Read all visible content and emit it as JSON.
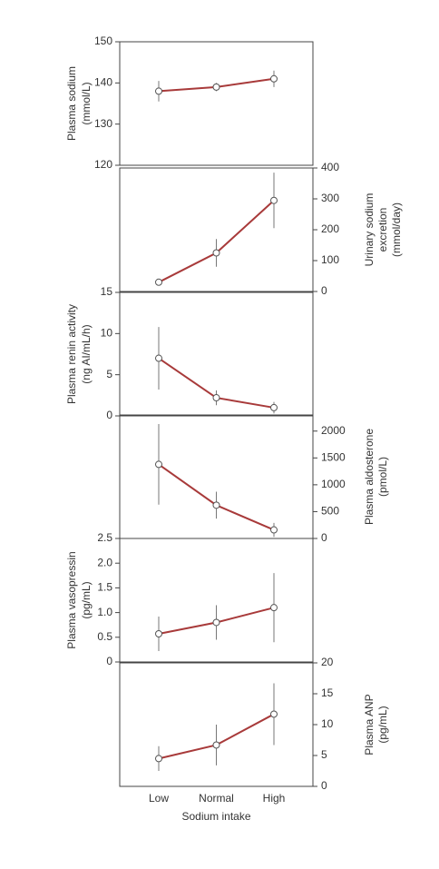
{
  "chart_data": [
    {
      "type": "line",
      "ylabel": [
        "Plasma sodium",
        "(mmol/L)"
      ],
      "yaxis": "left",
      "ylim": [
        120,
        150
      ],
      "yticks": [
        120,
        130,
        140,
        150
      ],
      "color": "#a83a3a",
      "values": [
        138,
        139,
        141
      ],
      "errors": [
        2.5,
        1,
        2
      ]
    },
    {
      "type": "line",
      "ylabel": [
        "Urinary  sodium",
        "excretion",
        "(mmol/day)"
      ],
      "yaxis": "right",
      "ylim": [
        0,
        400
      ],
      "yticks": [
        0,
        100,
        200,
        300,
        400
      ],
      "color": "#a83a3a",
      "values": [
        30,
        125,
        295
      ],
      "errors": [
        5,
        45,
        90
      ]
    },
    {
      "type": "line",
      "ylabel": [
        "Plasma renin activity",
        "(ng AI/mL/h)"
      ],
      "yaxis": "left",
      "ylim": [
        0,
        15
      ],
      "yticks": [
        0,
        5,
        10,
        15
      ],
      "color": "#a83a3a",
      "values": [
        7,
        2.2,
        1
      ],
      "errors": [
        3.8,
        0.9,
        0.7
      ]
    },
    {
      "type": "line",
      "ylabel": [
        "Plasma aldosterone",
        "(pmol/L)"
      ],
      "yaxis": "right",
      "ylim": [
        0,
        2300
      ],
      "yticks": [
        0,
        500,
        1000,
        1500,
        2000
      ],
      "color": "#a83a3a",
      "values": [
        1380,
        620,
        160
      ],
      "errors": [
        750,
        250,
        130
      ]
    },
    {
      "type": "line",
      "ylabel": [
        "Plasma vasopressin",
        "(pg/mL)"
      ],
      "yaxis": "left",
      "ylim": [
        0,
        2.5
      ],
      "yticks": [
        0,
        0.5,
        {
          "value": 1,
          "label": "1.0"
        },
        1.5,
        {
          "value": 2,
          "label": "2.0"
        },
        2.5
      ],
      "color": "#a83a3a",
      "values": [
        0.57,
        0.8,
        1.1
      ],
      "errors": [
        0.35,
        0.35,
        0.7
      ]
    },
    {
      "type": "line",
      "ylabel": [
        "Plasma ANP",
        "(pg/mL)"
      ],
      "yaxis": "right",
      "ylim": [
        0,
        20
      ],
      "yticks": [
        0,
        5,
        10,
        15,
        20
      ],
      "color": "#a83a3a",
      "values": [
        4.5,
        6.7,
        11.7
      ],
      "errors": [
        2,
        3.3,
        5
      ],
      "categories": [
        "Low",
        "Normal",
        "High"
      ],
      "xlabel": "Sodium intake"
    }
  ]
}
